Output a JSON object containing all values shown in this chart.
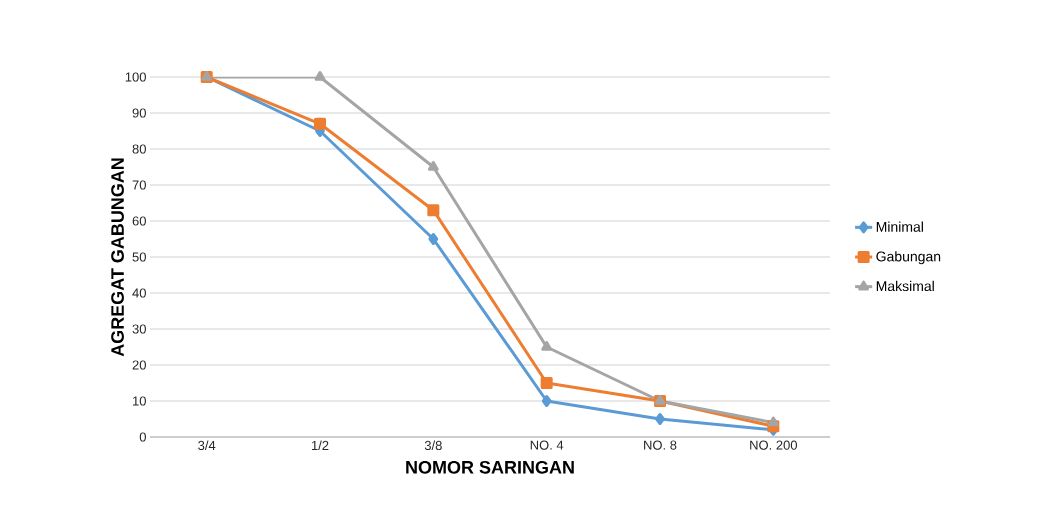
{
  "chart_data": {
    "type": "line",
    "xlabel": "NOMOR SARINGAN",
    "ylabel": "AGREGAT GABUNGAN",
    "categories": [
      "3/4",
      "1/2",
      "3/8",
      "NO. 4",
      "NO. 8",
      "NO. 200"
    ],
    "ylim": [
      0,
      100
    ],
    "yticks": [
      0,
      10,
      20,
      30,
      40,
      50,
      60,
      70,
      80,
      90,
      100
    ],
    "grid": "y",
    "legend": "right",
    "line_style": "solid",
    "series": [
      {
        "name": "Minimal",
        "color": "#5b9bd5",
        "marker": "diamond",
        "values": [
          100,
          85,
          55,
          10,
          5,
          2
        ]
      },
      {
        "name": "Gabungan",
        "color": "#ed7d31",
        "marker": "square",
        "values": [
          100,
          87,
          63,
          15,
          10,
          3
        ]
      },
      {
        "name": "Maksimal",
        "color": "#a5a5a5",
        "marker": "triangle",
        "values": [
          100,
          100,
          75,
          25,
          10,
          4
        ]
      }
    ]
  }
}
